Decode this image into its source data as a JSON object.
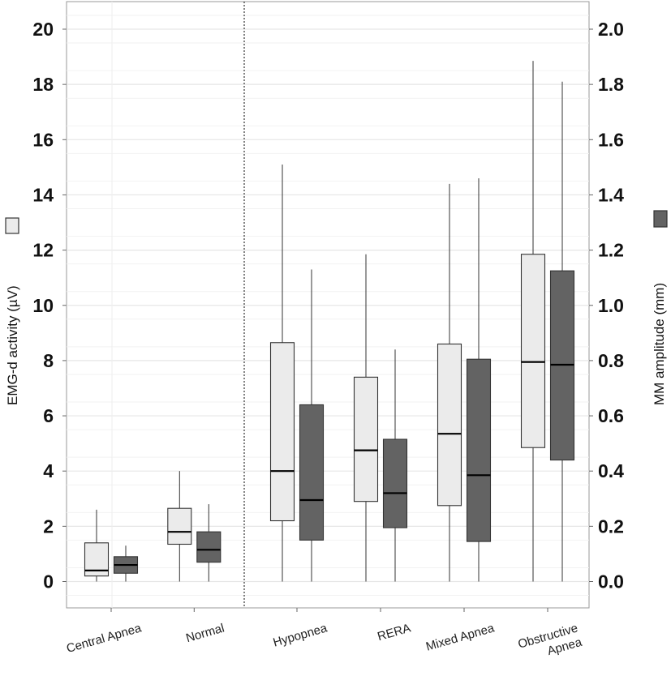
{
  "chart_data": {
    "type": "boxplot",
    "title": "",
    "xlabel": "",
    "ylabel_left": "EMG-d activity (µV)",
    "ylabel_right": "MM amplitude (mm)",
    "ylim_left": [
      -1,
      21
    ],
    "ylim_right": [
      -0.1,
      2.1
    ],
    "yticks_left": [
      0,
      2,
      4,
      6,
      8,
      10,
      12,
      14,
      16,
      18,
      20
    ],
    "yticks_right": [
      "0.0",
      "0.2",
      "0.4",
      "0.6",
      "0.8",
      "1.0",
      "1.2",
      "1.4",
      "1.6",
      "1.8",
      "2.0"
    ],
    "yticks_right_values": [
      0.0,
      0.2,
      0.4,
      0.6,
      0.8,
      1.0,
      1.2,
      1.4,
      1.6,
      1.8,
      2.0
    ],
    "grid": true,
    "divider_after_category": 1,
    "categories": [
      {
        "label": [
          "Central Apnea"
        ]
      },
      {
        "label": [
          "Normal"
        ]
      },
      {
        "label": [
          "Hypopnea"
        ]
      },
      {
        "label": [
          "RERA"
        ]
      },
      {
        "label": [
          "Mixed Apnea"
        ]
      },
      {
        "label": [
          "Obstructive",
          "Apnea"
        ]
      }
    ],
    "series": [
      {
        "name": "EMG-d activity (µV)",
        "axis": "left",
        "color": "#ebebeb",
        "boxes": [
          {
            "min": 0.0,
            "q1": 0.2,
            "median": 0.4,
            "q3": 1.4,
            "max": 2.6
          },
          {
            "min": 0.0,
            "q1": 1.35,
            "median": 1.8,
            "q3": 2.65,
            "max": 4.0
          },
          {
            "min": 0.0,
            "q1": 2.2,
            "median": 4.0,
            "q3": 8.65,
            "max": 15.1
          },
          {
            "min": 0.0,
            "q1": 2.9,
            "median": 4.75,
            "q3": 7.4,
            "max": 11.85
          },
          {
            "min": 0.0,
            "q1": 2.75,
            "median": 5.35,
            "q3": 8.6,
            "max": 14.4
          },
          {
            "min": 0.0,
            "q1": 4.85,
            "median": 7.95,
            "q3": 11.85,
            "max": 18.85
          }
        ]
      },
      {
        "name": "MM amplitude (mm)",
        "axis": "right",
        "color": "#636363",
        "boxes": [
          {
            "min": 0.0,
            "q1": 0.03,
            "median": 0.06,
            "q3": 0.09,
            "max": 0.13
          },
          {
            "min": 0.0,
            "q1": 0.07,
            "median": 0.115,
            "q3": 0.18,
            "max": 0.28
          },
          {
            "min": 0.0,
            "q1": 0.15,
            "median": 0.295,
            "q3": 0.64,
            "max": 1.13
          },
          {
            "min": 0.0,
            "q1": 0.195,
            "median": 0.32,
            "q3": 0.515,
            "max": 0.84
          },
          {
            "min": 0.0,
            "q1": 0.145,
            "median": 0.385,
            "q3": 0.805,
            "max": 1.46
          },
          {
            "min": 0.0,
            "q1": 0.44,
            "median": 0.785,
            "q3": 1.125,
            "max": 1.81
          }
        ]
      }
    ]
  }
}
